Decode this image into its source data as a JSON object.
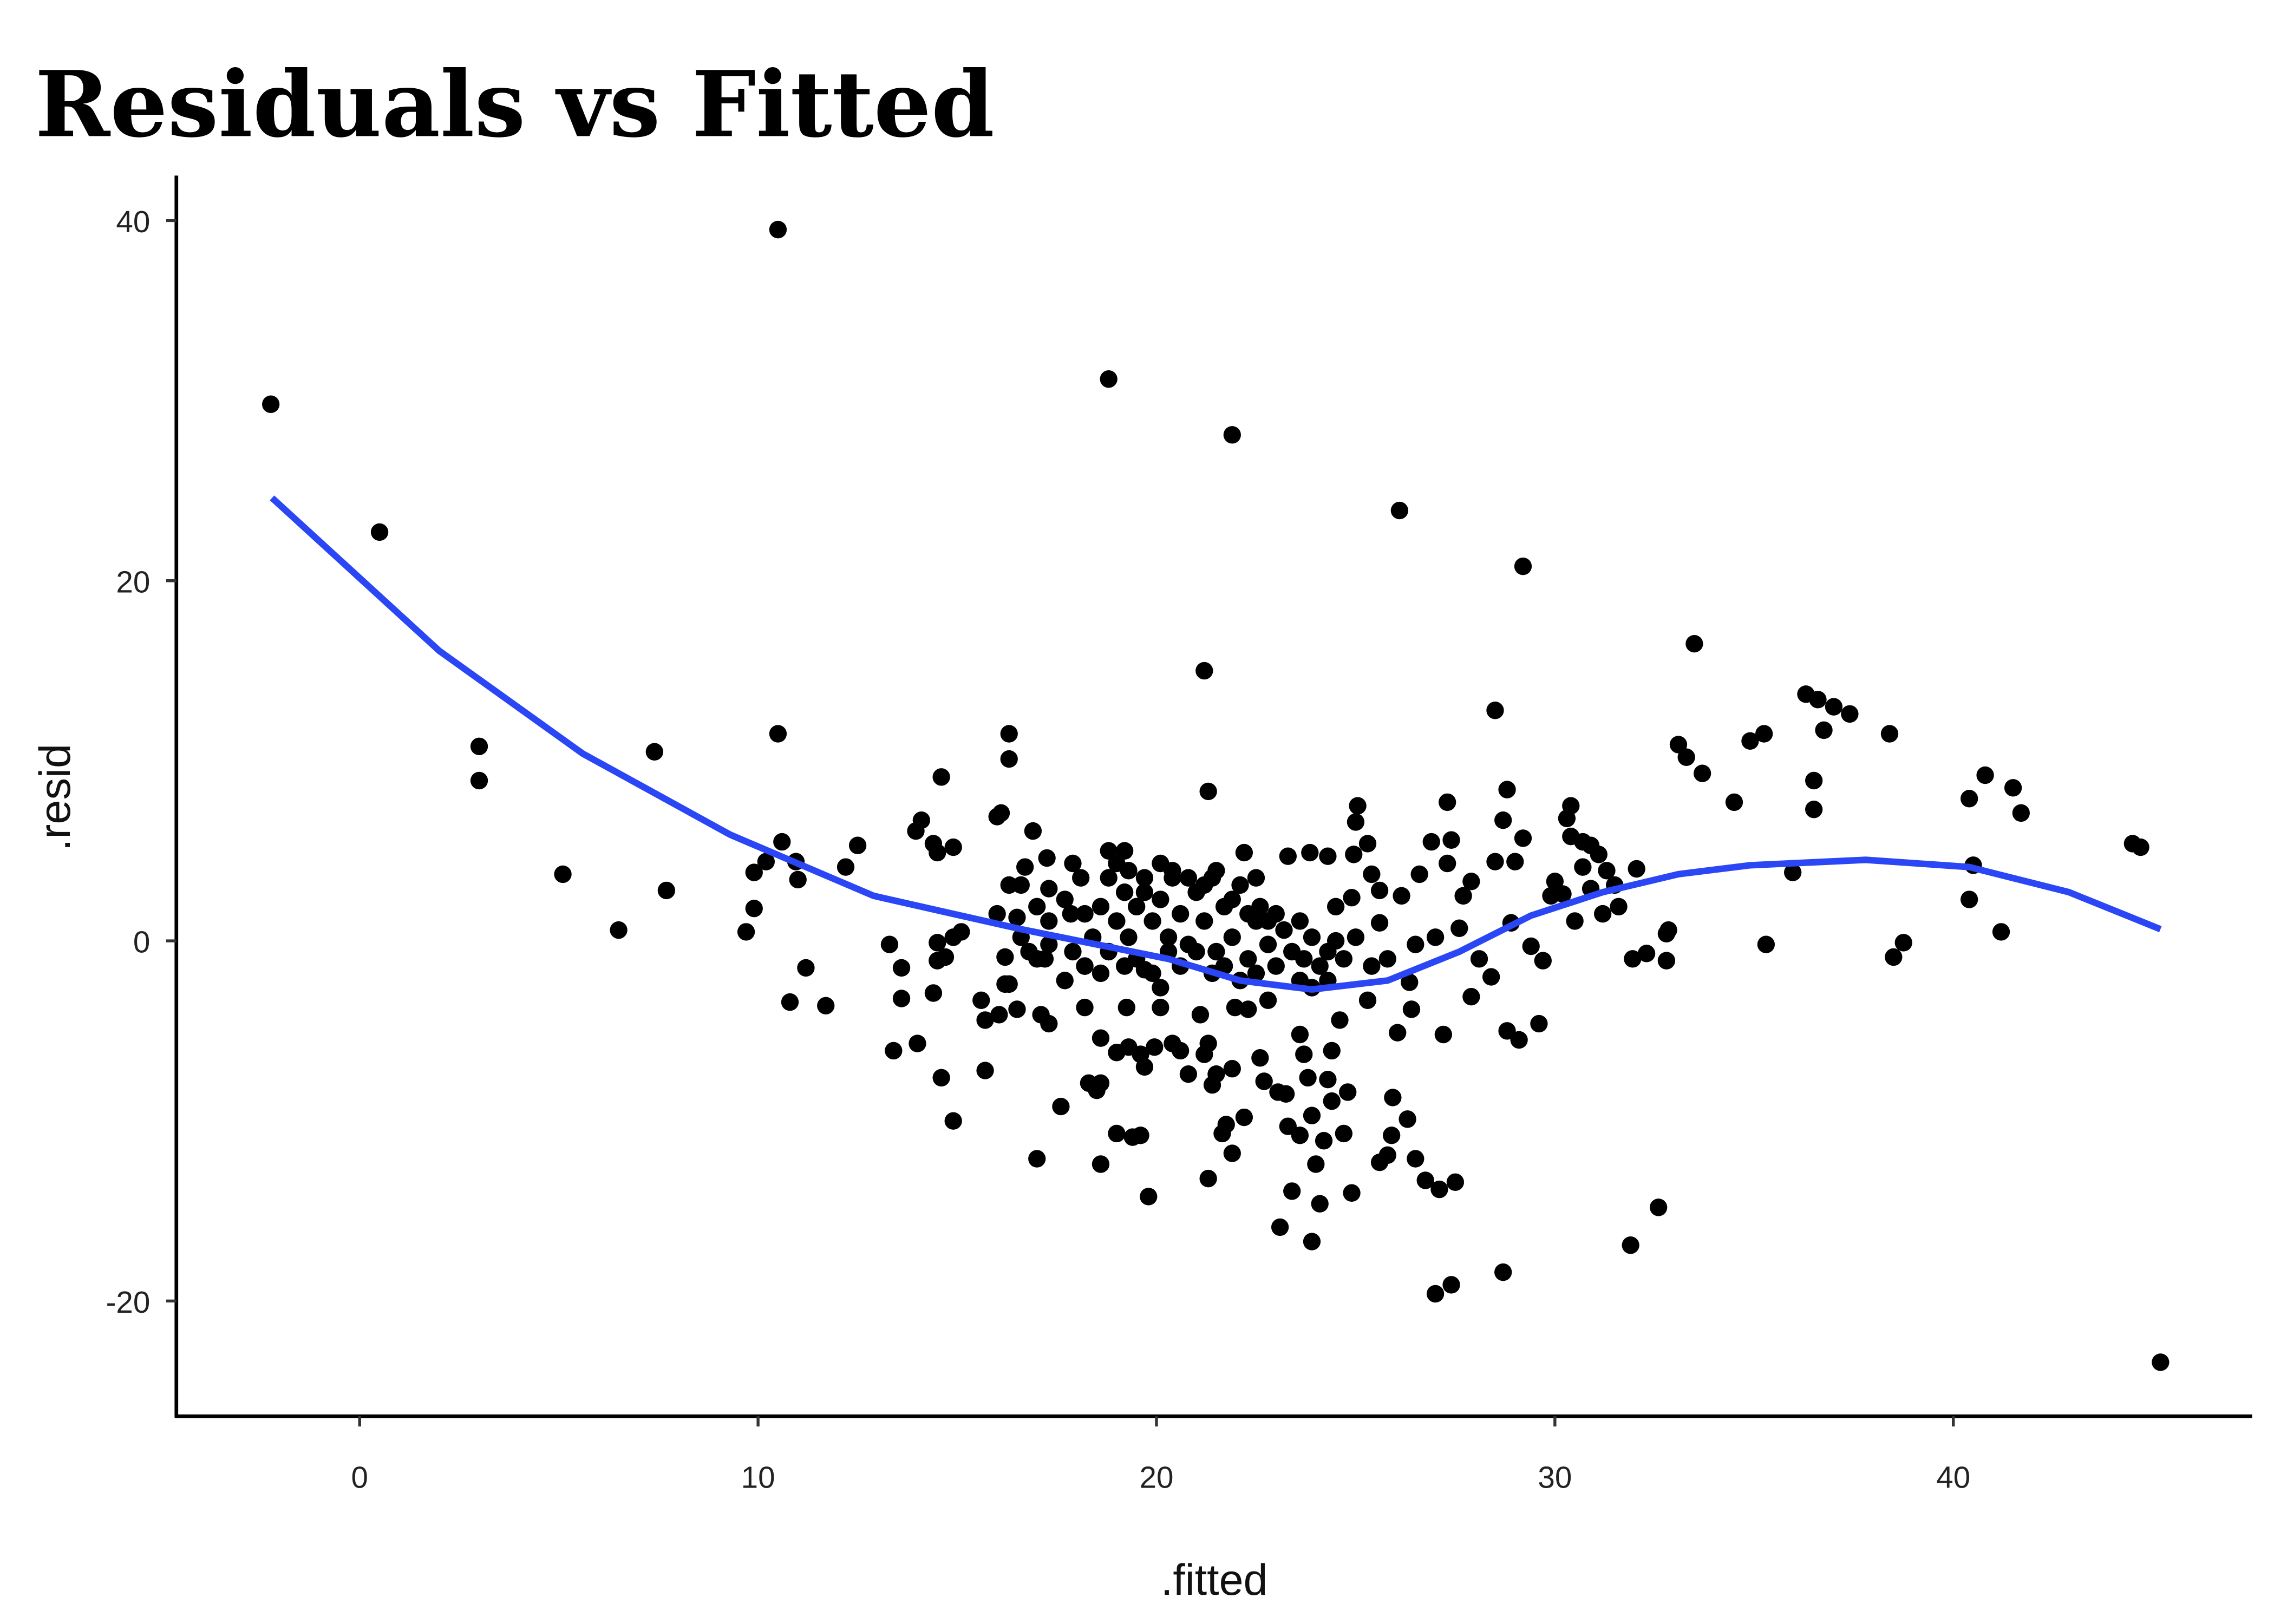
{
  "chart_data": {
    "type": "scatter",
    "title": "Residuals vs Fitted",
    "xlabel": ".fitted",
    "ylabel": ".resid",
    "xlim": [
      -4.6,
      47.5
    ],
    "ylim": [
      -26.4,
      42.5
    ],
    "xticks": [
      0,
      10,
      20,
      30,
      40
    ],
    "yticks": [
      -20,
      0,
      20,
      40
    ],
    "xtick_labels": [
      "0",
      "10",
      "20",
      "30",
      "40"
    ],
    "ytick_labels": [
      "-20",
      "0",
      "20",
      "40"
    ],
    "grid": false,
    "point_color": "#000000",
    "smooth_color": "#2a46f5",
    "points": [
      [
        -2.23,
        29.8
      ],
      [
        0.5,
        22.7
      ],
      [
        3.0,
        10.8
      ],
      [
        3.0,
        8.9
      ],
      [
        5.1,
        3.7
      ],
      [
        6.5,
        0.6
      ],
      [
        7.4,
        10.5
      ],
      [
        7.7,
        2.8
      ],
      [
        9.7,
        0.5
      ],
      [
        9.9,
        1.8
      ],
      [
        9.9,
        3.8
      ],
      [
        10.2,
        4.4
      ],
      [
        10.5,
        39.5
      ],
      [
        10.5,
        11.5
      ],
      [
        10.6,
        5.5
      ],
      [
        10.8,
        -3.4
      ],
      [
        10.95,
        4.4
      ],
      [
        11.0,
        3.4
      ],
      [
        11.2,
        -1.5
      ],
      [
        11.7,
        -3.6
      ],
      [
        12.2,
        4.1
      ],
      [
        12.5,
        5.3
      ],
      [
        13.3,
        -0.2
      ],
      [
        13.4,
        -6.1
      ],
      [
        13.6,
        -1.5
      ],
      [
        13.6,
        -3.2
      ],
      [
        14.0,
        -5.7
      ],
      [
        13.96,
        6.1
      ],
      [
        14.1,
        6.7
      ],
      [
        14.4,
        5.4
      ],
      [
        14.5,
        4.9
      ],
      [
        14.4,
        -2.9
      ],
      [
        14.5,
        -0.1
      ],
      [
        14.6,
        9.1
      ],
      [
        14.5,
        -1.1
      ],
      [
        14.6,
        -7.6
      ],
      [
        14.7,
        -0.9
      ],
      [
        14.9,
        -10.0
      ],
      [
        14.9,
        5.2
      ],
      [
        14.9,
        0.2
      ],
      [
        15.1,
        0.5
      ],
      [
        15.6,
        -3.3
      ],
      [
        15.7,
        -7.2
      ],
      [
        15.7,
        -4.4
      ],
      [
        16.0,
        6.9
      ],
      [
        16.1,
        7.1
      ],
      [
        16.0,
        1.5
      ],
      [
        16.05,
        -4.1
      ],
      [
        16.2,
        -2.4
      ],
      [
        16.3,
        3.1
      ],
      [
        16.3,
        11.5
      ],
      [
        16.3,
        10.1
      ],
      [
        16.2,
        -0.9
      ],
      [
        16.3,
        -2.4
      ],
      [
        16.5,
        -3.8
      ],
      [
        16.5,
        1.3
      ],
      [
        16.7,
        4.1
      ],
      [
        16.8,
        -0.6
      ],
      [
        16.9,
        6.1
      ],
      [
        17.0,
        -12.1
      ],
      [
        17.1,
        -4.1
      ],
      [
        17.2,
        -1.0
      ],
      [
        17.25,
        4.6
      ],
      [
        17.3,
        -4.6
      ],
      [
        17.3,
        2.9
      ],
      [
        17.6,
        -9.2
      ],
      [
        17.7,
        -2.2
      ],
      [
        17.85,
        1.5
      ],
      [
        17.9,
        4.3
      ],
      [
        18.2,
        -3.7
      ],
      [
        18.2,
        -1.4
      ],
      [
        18.3,
        -7.9
      ],
      [
        18.5,
        -8.3
      ],
      [
        18.6,
        -5.4
      ],
      [
        18.6,
        -12.4
      ],
      [
        18.6,
        -7.9
      ],
      [
        18.8,
        31.2
      ],
      [
        18.8,
        5.0
      ],
      [
        19.0,
        -6.2
      ],
      [
        19.0,
        -10.7
      ],
      [
        19.2,
        5.0
      ],
      [
        19.25,
        -3.7
      ],
      [
        19.3,
        -5.9
      ],
      [
        19.4,
        -10.9
      ],
      [
        19.6,
        -10.8
      ],
      [
        19.6,
        -6.3
      ],
      [
        19.7,
        -1.6
      ],
      [
        19.8,
        -14.2
      ],
      [
        19.7,
        -7.0
      ],
      [
        19.95,
        -5.9
      ],
      [
        20.1,
        -3.7
      ],
      [
        20.1,
        -2.6
      ],
      [
        20.4,
        -5.7
      ],
      [
        20.6,
        -6.1
      ],
      [
        20.8,
        -7.4
      ],
      [
        21.1,
        -4.1
      ],
      [
        21.2,
        15.0
      ],
      [
        21.3,
        8.3
      ],
      [
        21.2,
        -6.3
      ],
      [
        21.3,
        -13.2
      ],
      [
        21.3,
        -5.7
      ],
      [
        21.4,
        -8.0
      ],
      [
        21.5,
        -7.4
      ],
      [
        21.65,
        -10.7
      ],
      [
        21.75,
        -10.2
      ],
      [
        21.9,
        28.1
      ],
      [
        21.9,
        -11.8
      ],
      [
        21.9,
        -7.1
      ],
      [
        21.97,
        -3.7
      ],
      [
        22.2,
        -9.8
      ],
      [
        22.2,
        4.9
      ],
      [
        22.3,
        -3.8
      ],
      [
        22.6,
        -6.5
      ],
      [
        22.7,
        -7.8
      ],
      [
        22.8,
        -3.3
      ],
      [
        23.05,
        -8.4
      ],
      [
        23.1,
        -15.9
      ],
      [
        23.25,
        -8.5
      ],
      [
        23.4,
        -13.9
      ],
      [
        23.3,
        -10.3
      ],
      [
        23.3,
        4.7
      ],
      [
        23.6,
        -10.8
      ],
      [
        23.6,
        -5.2
      ],
      [
        23.7,
        -6.3
      ],
      [
        23.8,
        -7.6
      ],
      [
        23.85,
        4.9
      ],
      [
        23.9,
        -16.7
      ],
      [
        23.9,
        -9.7
      ],
      [
        24.0,
        -12.4
      ],
      [
        24.1,
        -14.6
      ],
      [
        24.2,
        -11.1
      ],
      [
        24.3,
        4.7
      ],
      [
        24.3,
        -7.7
      ],
      [
        24.4,
        -8.9
      ],
      [
        24.4,
        -6.1
      ],
      [
        24.5,
        1.9
      ],
      [
        24.5,
        0
      ],
      [
        24.6,
        -4.4
      ],
      [
        24.7,
        -10.7
      ],
      [
        24.8,
        -8.4
      ],
      [
        24.9,
        -14.0
      ],
      [
        24.9,
        2.4
      ],
      [
        24.95,
        4.8
      ],
      [
        25.0,
        6.6
      ],
      [
        25.05,
        7.5
      ],
      [
        25.3,
        -3.3
      ],
      [
        25.3,
        5.4
      ],
      [
        25.4,
        3.7
      ],
      [
        25.6,
        2.8
      ],
      [
        25.6,
        -12.3
      ],
      [
        25.6,
        1.0
      ],
      [
        25.8,
        -11.9
      ],
      [
        25.9,
        -10.8
      ],
      [
        25.93,
        -8.7
      ],
      [
        26.05,
        -5.1
      ],
      [
        26.1,
        23.9
      ],
      [
        26.15,
        2.5
      ],
      [
        26.3,
        -9.9
      ],
      [
        26.35,
        -2.3
      ],
      [
        26.4,
        -3.8
      ],
      [
        26.5,
        -0.2
      ],
      [
        26.5,
        -12.1
      ],
      [
        26.6,
        3.7
      ],
      [
        26.75,
        -13.3
      ],
      [
        26.9,
        5.5
      ],
      [
        27.0,
        0.2
      ],
      [
        27.0,
        -19.6
      ],
      [
        27.1,
        -13.8
      ],
      [
        27.2,
        -5.2
      ],
      [
        27.3,
        4.3
      ],
      [
        27.3,
        7.7
      ],
      [
        27.4,
        -19.1
      ],
      [
        27.5,
        -13.4
      ],
      [
        27.4,
        5.6
      ],
      [
        27.6,
        0.7
      ],
      [
        27.7,
        2.5
      ],
      [
        27.9,
        -3.1
      ],
      [
        27.9,
        3.3
      ],
      [
        28.1,
        -1.0
      ],
      [
        28.4,
        -2.0
      ],
      [
        28.5,
        12.8
      ],
      [
        28.5,
        4.4
      ],
      [
        28.7,
        -18.4
      ],
      [
        28.8,
        -5.0
      ],
      [
        28.8,
        8.4
      ],
      [
        28.7,
        6.7
      ],
      [
        28.9,
        1.0
      ],
      [
        29.0,
        4.4
      ],
      [
        29.1,
        -5.5
      ],
      [
        29.2,
        20.8
      ],
      [
        29.2,
        5.7
      ],
      [
        29.4,
        -0.3
      ],
      [
        29.6,
        -4.6
      ],
      [
        29.7,
        -1.1
      ],
      [
        29.9,
        2.5
      ],
      [
        30.0,
        3.3
      ],
      [
        30.2,
        2.6
      ],
      [
        30.3,
        6.8
      ],
      [
        30.4,
        7.5
      ],
      [
        30.4,
        5.8
      ],
      [
        30.5,
        1.1
      ],
      [
        30.7,
        4.1
      ],
      [
        30.7,
        5.5
      ],
      [
        30.9,
        2.9
      ],
      [
        30.9,
        5.3
      ],
      [
        31.1,
        4.8
      ],
      [
        31.2,
        1.5
      ],
      [
        31.3,
        3.9
      ],
      [
        31.5,
        3.1
      ],
      [
        31.6,
        1.9
      ],
      [
        31.95,
        -1.0
      ],
      [
        31.9,
        -16.9
      ],
      [
        32.05,
        4.0
      ],
      [
        32.3,
        -0.7
      ],
      [
        32.6,
        -14.8
      ],
      [
        32.8,
        -1.1
      ],
      [
        32.8,
        0.4
      ],
      [
        32.85,
        0.6
      ],
      [
        33.1,
        10.9
      ],
      [
        33.3,
        10.2
      ],
      [
        33.5,
        16.5
      ],
      [
        33.7,
        9.3
      ],
      [
        34.5,
        7.7
      ],
      [
        34.9,
        11.1
      ],
      [
        35.25,
        11.5
      ],
      [
        35.3,
        -0.2
      ],
      [
        35.97,
        3.8
      ],
      [
        36.3,
        13.7
      ],
      [
        36.6,
        13.4
      ],
      [
        36.5,
        8.9
      ],
      [
        36.5,
        7.3
      ],
      [
        36.75,
        11.7
      ],
      [
        37.0,
        13.0
      ],
      [
        37.4,
        12.6
      ],
      [
        38.4,
        11.5
      ],
      [
        38.5,
        -0.9
      ],
      [
        38.75,
        -0.1
      ],
      [
        40.4,
        7.9
      ],
      [
        40.5,
        4.2
      ],
      [
        40.4,
        2.3
      ],
      [
        40.8,
        9.2
      ],
      [
        41.2,
        0.5
      ],
      [
        41.5,
        8.5
      ],
      [
        41.7,
        7.1
      ],
      [
        44.5,
        5.4
      ],
      [
        44.7,
        5.2
      ],
      [
        45.2,
        -23.4
      ],
      [
        16.6,
        3.1
      ],
      [
        17.0,
        1.9
      ],
      [
        17.3,
        1.1
      ],
      [
        17.7,
        2.3
      ],
      [
        18.1,
        3.5
      ],
      [
        18.2,
        1.5
      ],
      [
        18.4,
        0.2
      ],
      [
        18.6,
        1.9
      ],
      [
        18.8,
        3.5
      ],
      [
        19.0,
        1.1
      ],
      [
        19.2,
        2.7
      ],
      [
        19.3,
        0.2
      ],
      [
        19.5,
        1.9
      ],
      [
        19.7,
        3.5
      ],
      [
        19.9,
        1.1
      ],
      [
        20.1,
        2.3
      ],
      [
        20.3,
        0.2
      ],
      [
        20.4,
        3.5
      ],
      [
        20.6,
        1.5
      ],
      [
        20.8,
        -0.2
      ],
      [
        21.0,
        2.7
      ],
      [
        21.2,
        1.1
      ],
      [
        21.4,
        3.5
      ],
      [
        21.5,
        -0.6
      ],
      [
        21.7,
        1.9
      ],
      [
        21.9,
        0.2
      ],
      [
        22.1,
        3.1
      ],
      [
        22.3,
        -1.0
      ],
      [
        22.5,
        1.1
      ],
      [
        22.6,
        1.9
      ],
      [
        22.8,
        -0.2
      ],
      [
        23.0,
        -1.4
      ],
      [
        23.2,
        0.6
      ],
      [
        23.4,
        -0.6
      ],
      [
        23.6,
        1.1
      ],
      [
        23.7,
        -1.0
      ],
      [
        23.9,
        0.2
      ],
      [
        24.1,
        -1.4
      ],
      [
        24.3,
        -0.6
      ],
      [
        24.7,
        -1.0
      ],
      [
        25.0,
        0.2
      ],
      [
        25.4,
        -1.4
      ],
      [
        25.8,
        -1.0
      ],
      [
        18.8,
        -0.6
      ],
      [
        19.2,
        -1.4
      ],
      [
        19.5,
        -1.0
      ],
      [
        19.9,
        -1.8
      ],
      [
        20.3,
        -0.6
      ],
      [
        20.6,
        -1.4
      ],
      [
        21.0,
        -0.6
      ],
      [
        21.4,
        -1.8
      ],
      [
        21.7,
        -1.4
      ],
      [
        22.1,
        -2.2
      ],
      [
        22.5,
        -1.8
      ],
      [
        22.8,
        1.1
      ],
      [
        16.6,
        0.2
      ],
      [
        17.0,
        -1.0
      ],
      [
        17.3,
        -0.2
      ],
      [
        17.9,
        -0.6
      ],
      [
        18.2,
        -1.4
      ],
      [
        18.6,
        -1.8
      ],
      [
        19.0,
        4.3
      ],
      [
        19.3,
        3.9
      ],
      [
        19.7,
        2.7
      ],
      [
        20.1,
        4.3
      ],
      [
        20.4,
        3.9
      ],
      [
        20.8,
        3.5
      ],
      [
        21.2,
        3.1
      ],
      [
        21.5,
        3.9
      ],
      [
        21.9,
        2.3
      ],
      [
        22.3,
        1.5
      ],
      [
        22.5,
        3.5
      ],
      [
        23.0,
        1.5
      ],
      [
        23.6,
        -2.2
      ],
      [
        23.9,
        -2.6
      ],
      [
        24.3,
        -2.2
      ]
    ],
    "smooth": [
      [
        -2.2,
        24.6
      ],
      [
        2.0,
        16.1
      ],
      [
        5.6,
        10.4
      ],
      [
        9.3,
        5.9
      ],
      [
        12.9,
        2.5
      ],
      [
        16.6,
        0.65
      ],
      [
        20.3,
        -1.0
      ],
      [
        22.1,
        -2.2
      ],
      [
        23.9,
        -2.7
      ],
      [
        25.8,
        -2.2
      ],
      [
        27.6,
        -0.6
      ],
      [
        29.4,
        1.4
      ],
      [
        31.2,
        2.7
      ],
      [
        33.1,
        3.7
      ],
      [
        34.9,
        4.2
      ],
      [
        37.8,
        4.5
      ],
      [
        40.4,
        4.1
      ],
      [
        42.9,
        2.7
      ],
      [
        45.2,
        0.65
      ]
    ]
  }
}
